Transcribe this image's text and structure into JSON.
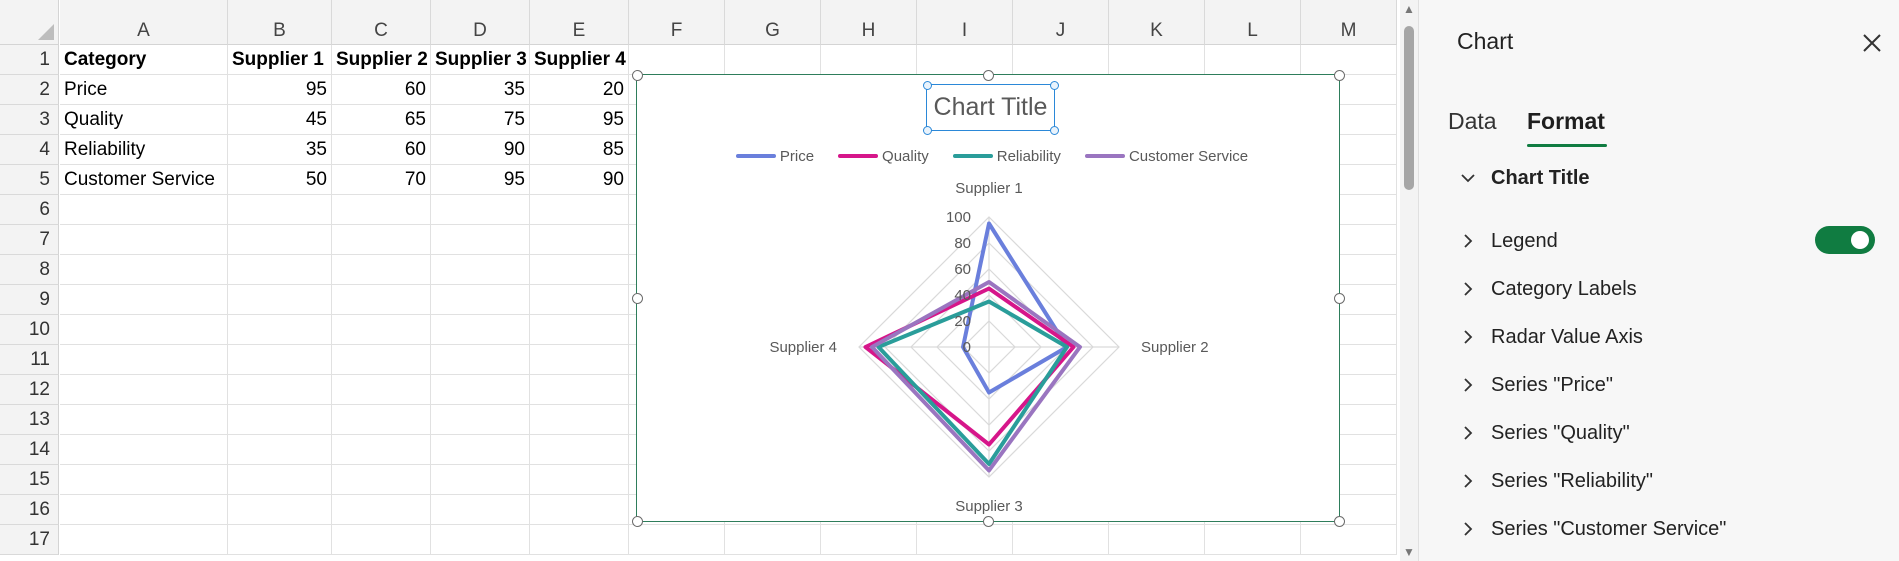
{
  "columns": [
    "A",
    "B",
    "C",
    "D",
    "E",
    "F",
    "G",
    "H",
    "I",
    "J",
    "K",
    "L",
    "M"
  ],
  "rows": [
    "1",
    "2",
    "3",
    "4",
    "5",
    "6",
    "7",
    "8",
    "9",
    "10",
    "11",
    "12",
    "13",
    "14",
    "15",
    "16",
    "17"
  ],
  "table": {
    "header": [
      "Category",
      "Supplier 1",
      "Supplier 2",
      "Supplier 3",
      "Supplier 4"
    ],
    "body": [
      [
        "Price",
        "95",
        "60",
        "35",
        "20"
      ],
      [
        "Quality",
        "45",
        "65",
        "75",
        "95"
      ],
      [
        "Reliability",
        "35",
        "60",
        "90",
        "85"
      ],
      [
        "Customer Service",
        "50",
        "70",
        "95",
        "90"
      ]
    ]
  },
  "chart_data": {
    "type": "radar",
    "title": "Chart Title",
    "categories": [
      "Supplier 1",
      "Supplier 2",
      "Supplier 3",
      "Supplier 4"
    ],
    "radial_ticks": [
      "100",
      "80",
      "60",
      "40",
      "20",
      "0"
    ],
    "range": [
      0,
      100
    ],
    "legend_position": "top",
    "series": [
      {
        "name": "Price",
        "values": [
          95,
          60,
          35,
          20
        ],
        "color": "#6a7fdc"
      },
      {
        "name": "Quality",
        "values": [
          45,
          65,
          75,
          95
        ],
        "color": "#d6168a"
      },
      {
        "name": "Reliability",
        "values": [
          35,
          60,
          90,
          85
        ],
        "color": "#2a9d9a"
      },
      {
        "name": "Customer Service",
        "values": [
          50,
          70,
          95,
          90
        ],
        "color": "#9a75c0"
      }
    ]
  },
  "panel": {
    "title": "Chart",
    "close_icon": "close-icon",
    "tabs": [
      {
        "label": "Data"
      },
      {
        "label": "Format"
      }
    ],
    "active_tab": "Format",
    "expanded_section": "Chart Title",
    "sections": [
      {
        "label": "Legend"
      },
      {
        "label": "Category Labels"
      },
      {
        "label": "Radar Value Axis"
      },
      {
        "label": "Series \"Price\""
      },
      {
        "label": "Series \"Quality\""
      },
      {
        "label": "Series \"Reliability\""
      },
      {
        "label": "Series \"Customer Service\""
      }
    ],
    "legend_toggle": "on"
  },
  "colors": {
    "accent": "#107c41",
    "selection": "#2b88d8"
  }
}
